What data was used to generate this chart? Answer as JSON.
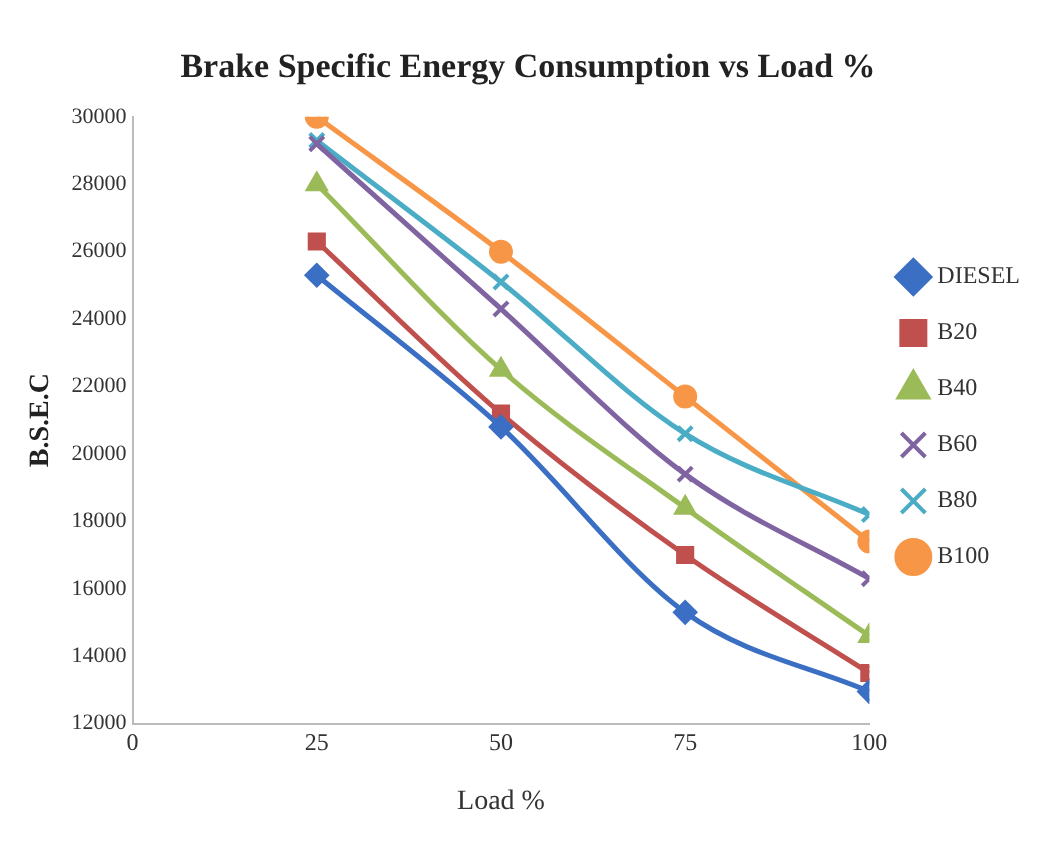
{
  "chart_data": {
    "type": "line",
    "title": "Brake Specific Energy Consumption vs Load %",
    "xlabel": "Load %",
    "ylabel": "B.S.E.C",
    "x": [
      25,
      50,
      75,
      100
    ],
    "series": [
      {
        "name": "DIESEL",
        "color": "#3a6fc4",
        "marker": "diamond",
        "values": [
          25300,
          20800,
          15300,
          12950
        ]
      },
      {
        "name": "B20",
        "color": "#c0504d",
        "marker": "square",
        "values": [
          26300,
          21200,
          17000,
          13500
        ]
      },
      {
        "name": "B40",
        "color": "#9bbb59",
        "marker": "triangle",
        "values": [
          28000,
          22500,
          18400,
          14600
        ]
      },
      {
        "name": "B60",
        "color": "#8064a2",
        "marker": "cross",
        "values": [
          29200,
          24300,
          19400,
          16300
        ]
      },
      {
        "name": "B80",
        "color": "#4bacc6",
        "marker": "cross",
        "values": [
          29300,
          25100,
          20600,
          18200
        ]
      },
      {
        "name": "B100",
        "color": "#f79646",
        "marker": "circle",
        "values": [
          30000,
          26000,
          21700,
          17400
        ]
      }
    ],
    "xlim": [
      0,
      100
    ],
    "xticks": [
      0,
      25,
      50,
      75,
      100
    ],
    "ylim": [
      12000,
      30000
    ],
    "yticks": [
      12000,
      14000,
      16000,
      18000,
      20000,
      22000,
      24000,
      26000,
      28000,
      30000
    ],
    "grid": false,
    "legend": "right",
    "line_style": "solid"
  }
}
